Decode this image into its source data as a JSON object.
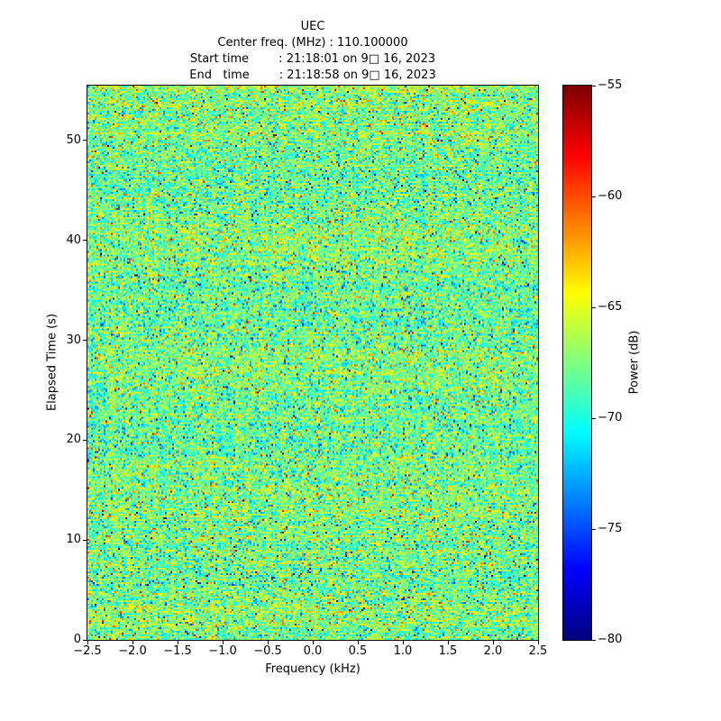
{
  "figure": {
    "background": "#ffffff"
  },
  "chart_data": {
    "type": "heatmap",
    "title": "UEC",
    "header_lines": [
      "Center freq. (MHz) : 110.100000",
      "Start time        : 21:18:01 on 9□ 16, 2023",
      "End   time        : 21:18:58 on 9□ 16, 2023"
    ],
    "xlabel": "Frequency (kHz)",
    "ylabel": "Elapsed Time (s)",
    "x_range": [
      -2.5,
      2.5
    ],
    "y_range": [
      0,
      55.5
    ],
    "x_ticks": {
      "values": [
        -2.5,
        -2.0,
        -1.5,
        -1.0,
        -0.5,
        0.0,
        0.5,
        1.0,
        1.5,
        2.0,
        2.5
      ],
      "labels": [
        "−2.5",
        "−2.0",
        "−1.5",
        "−1.0",
        "−0.5",
        "0.0",
        "0.5",
        "1.0",
        "1.5",
        "2.0",
        "2.5"
      ]
    },
    "y_ticks": {
      "values": [
        0,
        10,
        20,
        30,
        40,
        50
      ],
      "labels": [
        "0",
        "10",
        "20",
        "30",
        "40",
        "50"
      ]
    },
    "colorbar": {
      "label": "Power (dB)",
      "colormap": "jet",
      "value_range": [
        -80,
        -55
      ],
      "tick_values": [
        -55,
        -60,
        -65,
        -70,
        -75,
        -80
      ],
      "tick_labels": [
        "−55",
        "−60",
        "−65",
        "−70",
        "−75",
        "−80"
      ]
    },
    "noise": {
      "mean_db": -67.8,
      "std_db": 2.6,
      "row_band_db": 0.5,
      "col_var_db": 0.3,
      "low_outlier_fraction": 0.012,
      "high_outlier_fraction": 0.012,
      "seed": 42,
      "cols": 250,
      "rows": 308
    }
  }
}
